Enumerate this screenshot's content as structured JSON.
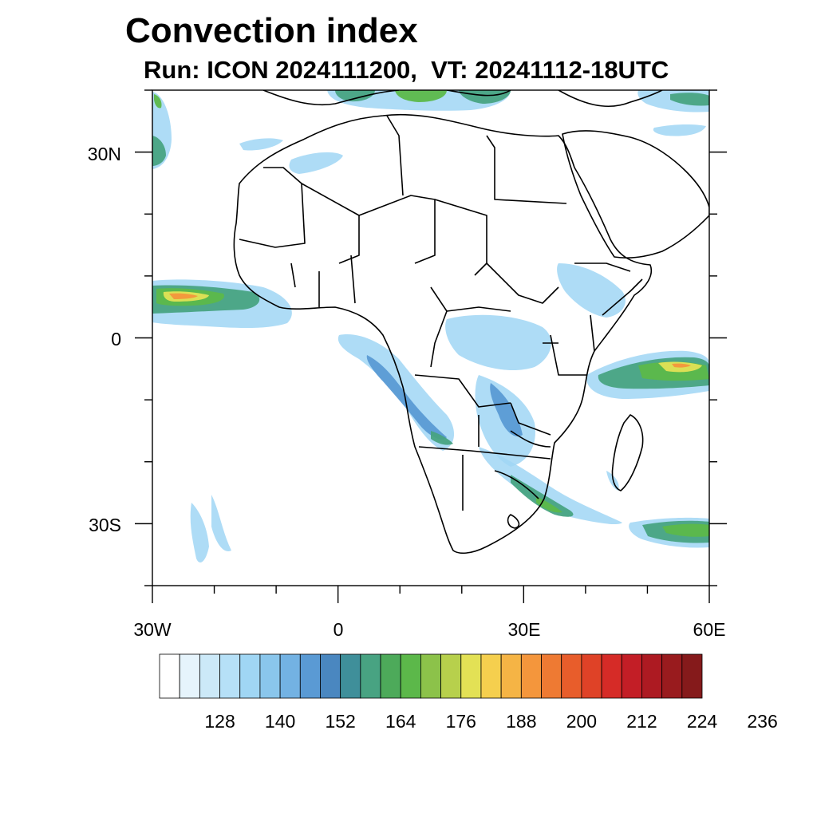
{
  "title": "Convection index",
  "subtitle": "Run: ICON 2024111200,  VT: 20241112-18UTC",
  "axes": {
    "lon_labels": [
      "30W",
      "0",
      "30E",
      "60E"
    ],
    "lat_labels": [
      "30N",
      "0",
      "30S"
    ],
    "lon_range": [
      -30,
      60
    ],
    "lat_range": [
      -40,
      40
    ]
  },
  "colorbar": {
    "labels": [
      "128",
      "140",
      "152",
      "164",
      "176",
      "188",
      "200",
      "212",
      "224",
      "236"
    ],
    "colors": [
      "#ffffff",
      "#e6f4fc",
      "#cce9f8",
      "#b6e0f7",
      "#a0d6f4",
      "#8ac6ec",
      "#73b2e3",
      "#5a9ad4",
      "#4a87c0",
      "#3f8f9a",
      "#48a382",
      "#4daa5a",
      "#5cb84a",
      "#8cc24a",
      "#b7d04c",
      "#e3e155",
      "#f5cf4e",
      "#f5b445",
      "#f4963c",
      "#ee7a33",
      "#e85d2b",
      "#df4227",
      "#d62b27",
      "#c31e26",
      "#ad1a22",
      "#991b1e",
      "#851a1b"
    ]
  },
  "colors": {
    "light": "#a0d6f4",
    "mid": "#5a9ad4",
    "teal": "#48a382",
    "green": "#5cb84a",
    "yellow": "#e3e155",
    "orange": "#f4963c"
  }
}
